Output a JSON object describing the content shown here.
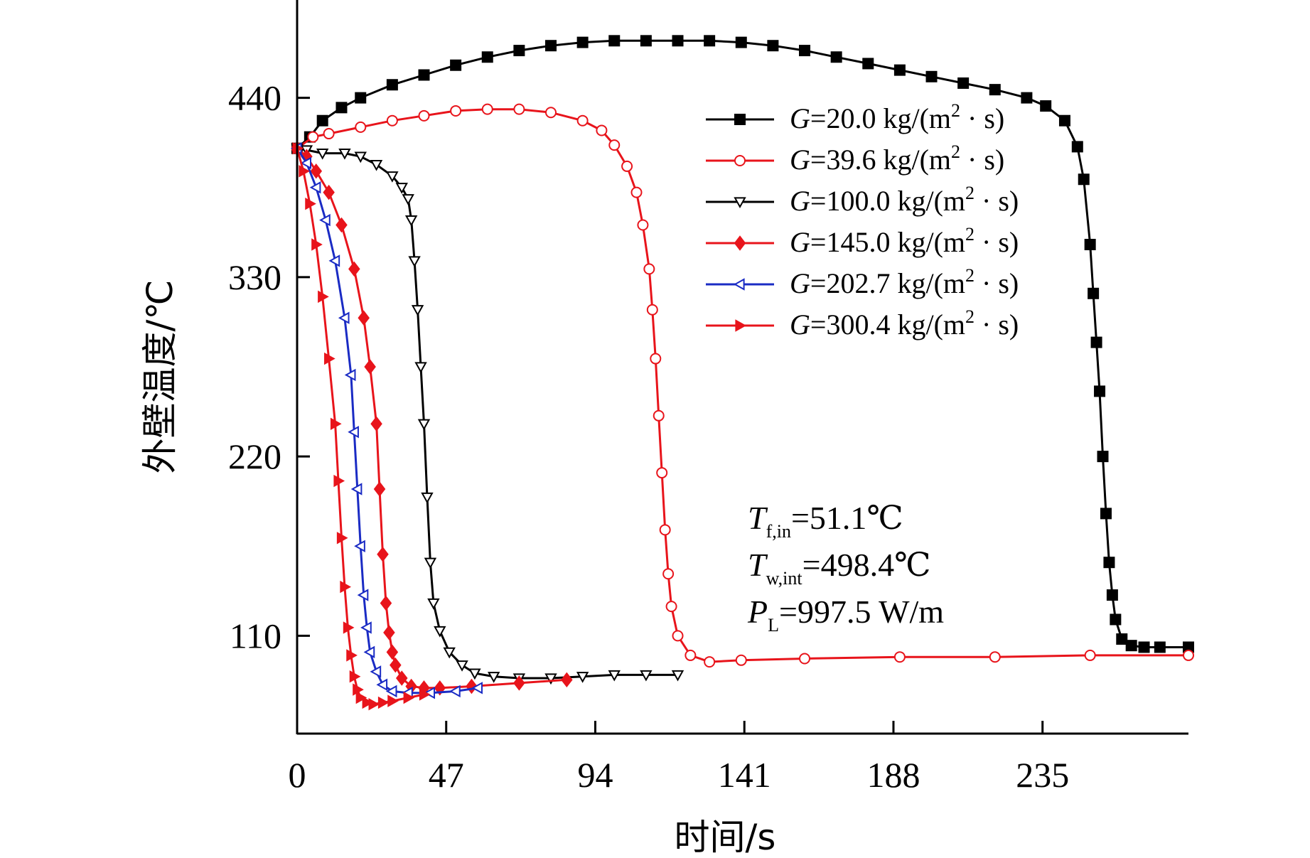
{
  "chart_data": {
    "type": "line",
    "title": "",
    "xlabel": "时间/s",
    "ylabel": "外壁温度/℃",
    "xlim": [
      0,
      281
    ],
    "ylim": [
      50,
      500
    ],
    "x_ticks": [
      "0",
      "47",
      "94",
      "141",
      "188",
      "235"
    ],
    "x_tick_values": [
      0,
      47,
      94,
      141,
      188,
      235
    ],
    "y_ticks": [
      "110",
      "220",
      "330",
      "440"
    ],
    "y_tick_values": [
      110,
      220,
      330,
      440
    ],
    "grid": false,
    "legend_position": "top-right",
    "series": [
      {
        "name": "G=20.0 kg/(m² · s)",
        "legend": {
          "var": "G",
          "value": "=20.0 kg/(m",
          "sup": "2",
          "tail": " · s)"
        },
        "color": "#000000",
        "marker": "square-filled",
        "x": [
          0,
          4,
          8,
          14,
          20,
          30,
          40,
          50,
          60,
          70,
          80,
          90,
          100,
          110,
          120,
          130,
          140,
          150,
          160,
          170,
          180,
          190,
          200,
          210,
          220,
          230,
          236,
          242,
          246,
          248,
          250,
          251,
          252,
          253,
          254,
          255,
          256,
          257,
          258,
          260,
          263,
          267,
          272,
          281
        ],
        "y": [
          409,
          416,
          426,
          434,
          440,
          448,
          454,
          460,
          465,
          469,
          472,
          474,
          475,
          475,
          475,
          475,
          474,
          472,
          469,
          465,
          461,
          457,
          453,
          449,
          445,
          440,
          435,
          426,
          410,
          390,
          350,
          320,
          290,
          260,
          220,
          185,
          155,
          135,
          120,
          108,
          104,
          103,
          103,
          103
        ]
      },
      {
        "name": "G=39.6 kg/(m² · s)",
        "legend": {
          "var": "G",
          "value": "=39.6 kg/(m",
          "sup": "2",
          "tail": " · s)"
        },
        "color": "#e8141b",
        "marker": "circle-open",
        "x": [
          0,
          5,
          10,
          20,
          30,
          40,
          50,
          60,
          70,
          80,
          90,
          96,
          100,
          104,
          107,
          109,
          111,
          112,
          113,
          114,
          115,
          116,
          117,
          118,
          120,
          124,
          130,
          140,
          160,
          190,
          220,
          250,
          281
        ],
        "y": [
          409,
          416,
          418,
          422,
          426,
          429,
          432,
          433,
          433,
          431,
          426,
          420,
          411,
          398,
          382,
          362,
          335,
          310,
          280,
          245,
          210,
          175,
          148,
          128,
          110,
          98,
          94,
          95,
          96,
          97,
          97,
          98,
          98
        ]
      },
      {
        "name": "G=100.0 kg/(m² · s)",
        "legend": {
          "var": "G",
          "value": "=100.0 kg/(m",
          "sup": "2",
          "tail": " · s)"
        },
        "color": "#000000",
        "marker": "triangle-down-open",
        "x": [
          0,
          3,
          8,
          15,
          20,
          25,
          30,
          33,
          35,
          36,
          37,
          38,
          39,
          40,
          41,
          42,
          43,
          45,
          48,
          52,
          56,
          62,
          70,
          80,
          90,
          100,
          110,
          120
        ],
        "y": [
          409,
          408,
          406,
          406,
          404,
          399,
          392,
          385,
          378,
          365,
          340,
          310,
          275,
          240,
          195,
          155,
          130,
          113,
          100,
          92,
          87,
          85,
          84,
          84,
          85,
          86,
          86,
          86
        ]
      },
      {
        "name": "G=145.0 kg/(m² · s)",
        "legend": {
          "var": "G",
          "value": "=145.0 kg/(m",
          "sup": "2",
          "tail": " · s)"
        },
        "color": "#e8141b",
        "marker": "diamond-filled",
        "x": [
          0,
          3,
          6,
          10,
          14,
          18,
          21,
          23,
          25,
          26,
          27,
          28,
          29,
          30,
          31,
          33,
          36,
          40,
          45,
          55,
          70,
          85
        ],
        "y": [
          409,
          404,
          395,
          382,
          362,
          335,
          305,
          275,
          240,
          200,
          160,
          130,
          112,
          100,
          92,
          84,
          79,
          78,
          78,
          79,
          81,
          83
        ]
      },
      {
        "name": "G=202.7 kg/(m² · s)",
        "legend": {
          "var": "G",
          "value": "=202.7 kg/(m",
          "sup": "2",
          "tail": " · s)"
        },
        "color": "#1a2bc4",
        "marker": "triangle-left-open",
        "x": [
          0,
          3,
          6,
          9,
          12,
          15,
          17,
          18,
          19,
          20,
          21,
          22,
          23,
          25,
          27,
          30,
          35,
          42,
          50,
          57
        ],
        "y": [
          409,
          400,
          385,
          365,
          340,
          305,
          270,
          235,
          200,
          165,
          135,
          115,
          100,
          88,
          80,
          76,
          75,
          75,
          76,
          78
        ]
      },
      {
        "name": "G=300.4 kg/(m² · s)",
        "legend": {
          "var": "G",
          "value": "=300.4 kg/(m",
          "sup": "2",
          "tail": " · s)"
        },
        "color": "#e8141b",
        "marker": "triangle-right-filled",
        "x": [
          0,
          2,
          4,
          6,
          8,
          10,
          12,
          13,
          14,
          15,
          16,
          17,
          18,
          19,
          20,
          22,
          24,
          27,
          30,
          35,
          40
        ],
        "y": [
          409,
          395,
          375,
          350,
          318,
          280,
          240,
          205,
          170,
          140,
          115,
          98,
          85,
          77,
          72,
          69,
          68,
          69,
          70,
          72,
          74
        ]
      }
    ],
    "annotations": [
      {
        "var": "T",
        "sub": "f,in",
        "text": "=51.1℃"
      },
      {
        "var": "T",
        "sub": "w,int",
        "text": "=498.4℃"
      },
      {
        "var": "P",
        "sub": "L",
        "text": "=997.5 W/m"
      }
    ]
  }
}
